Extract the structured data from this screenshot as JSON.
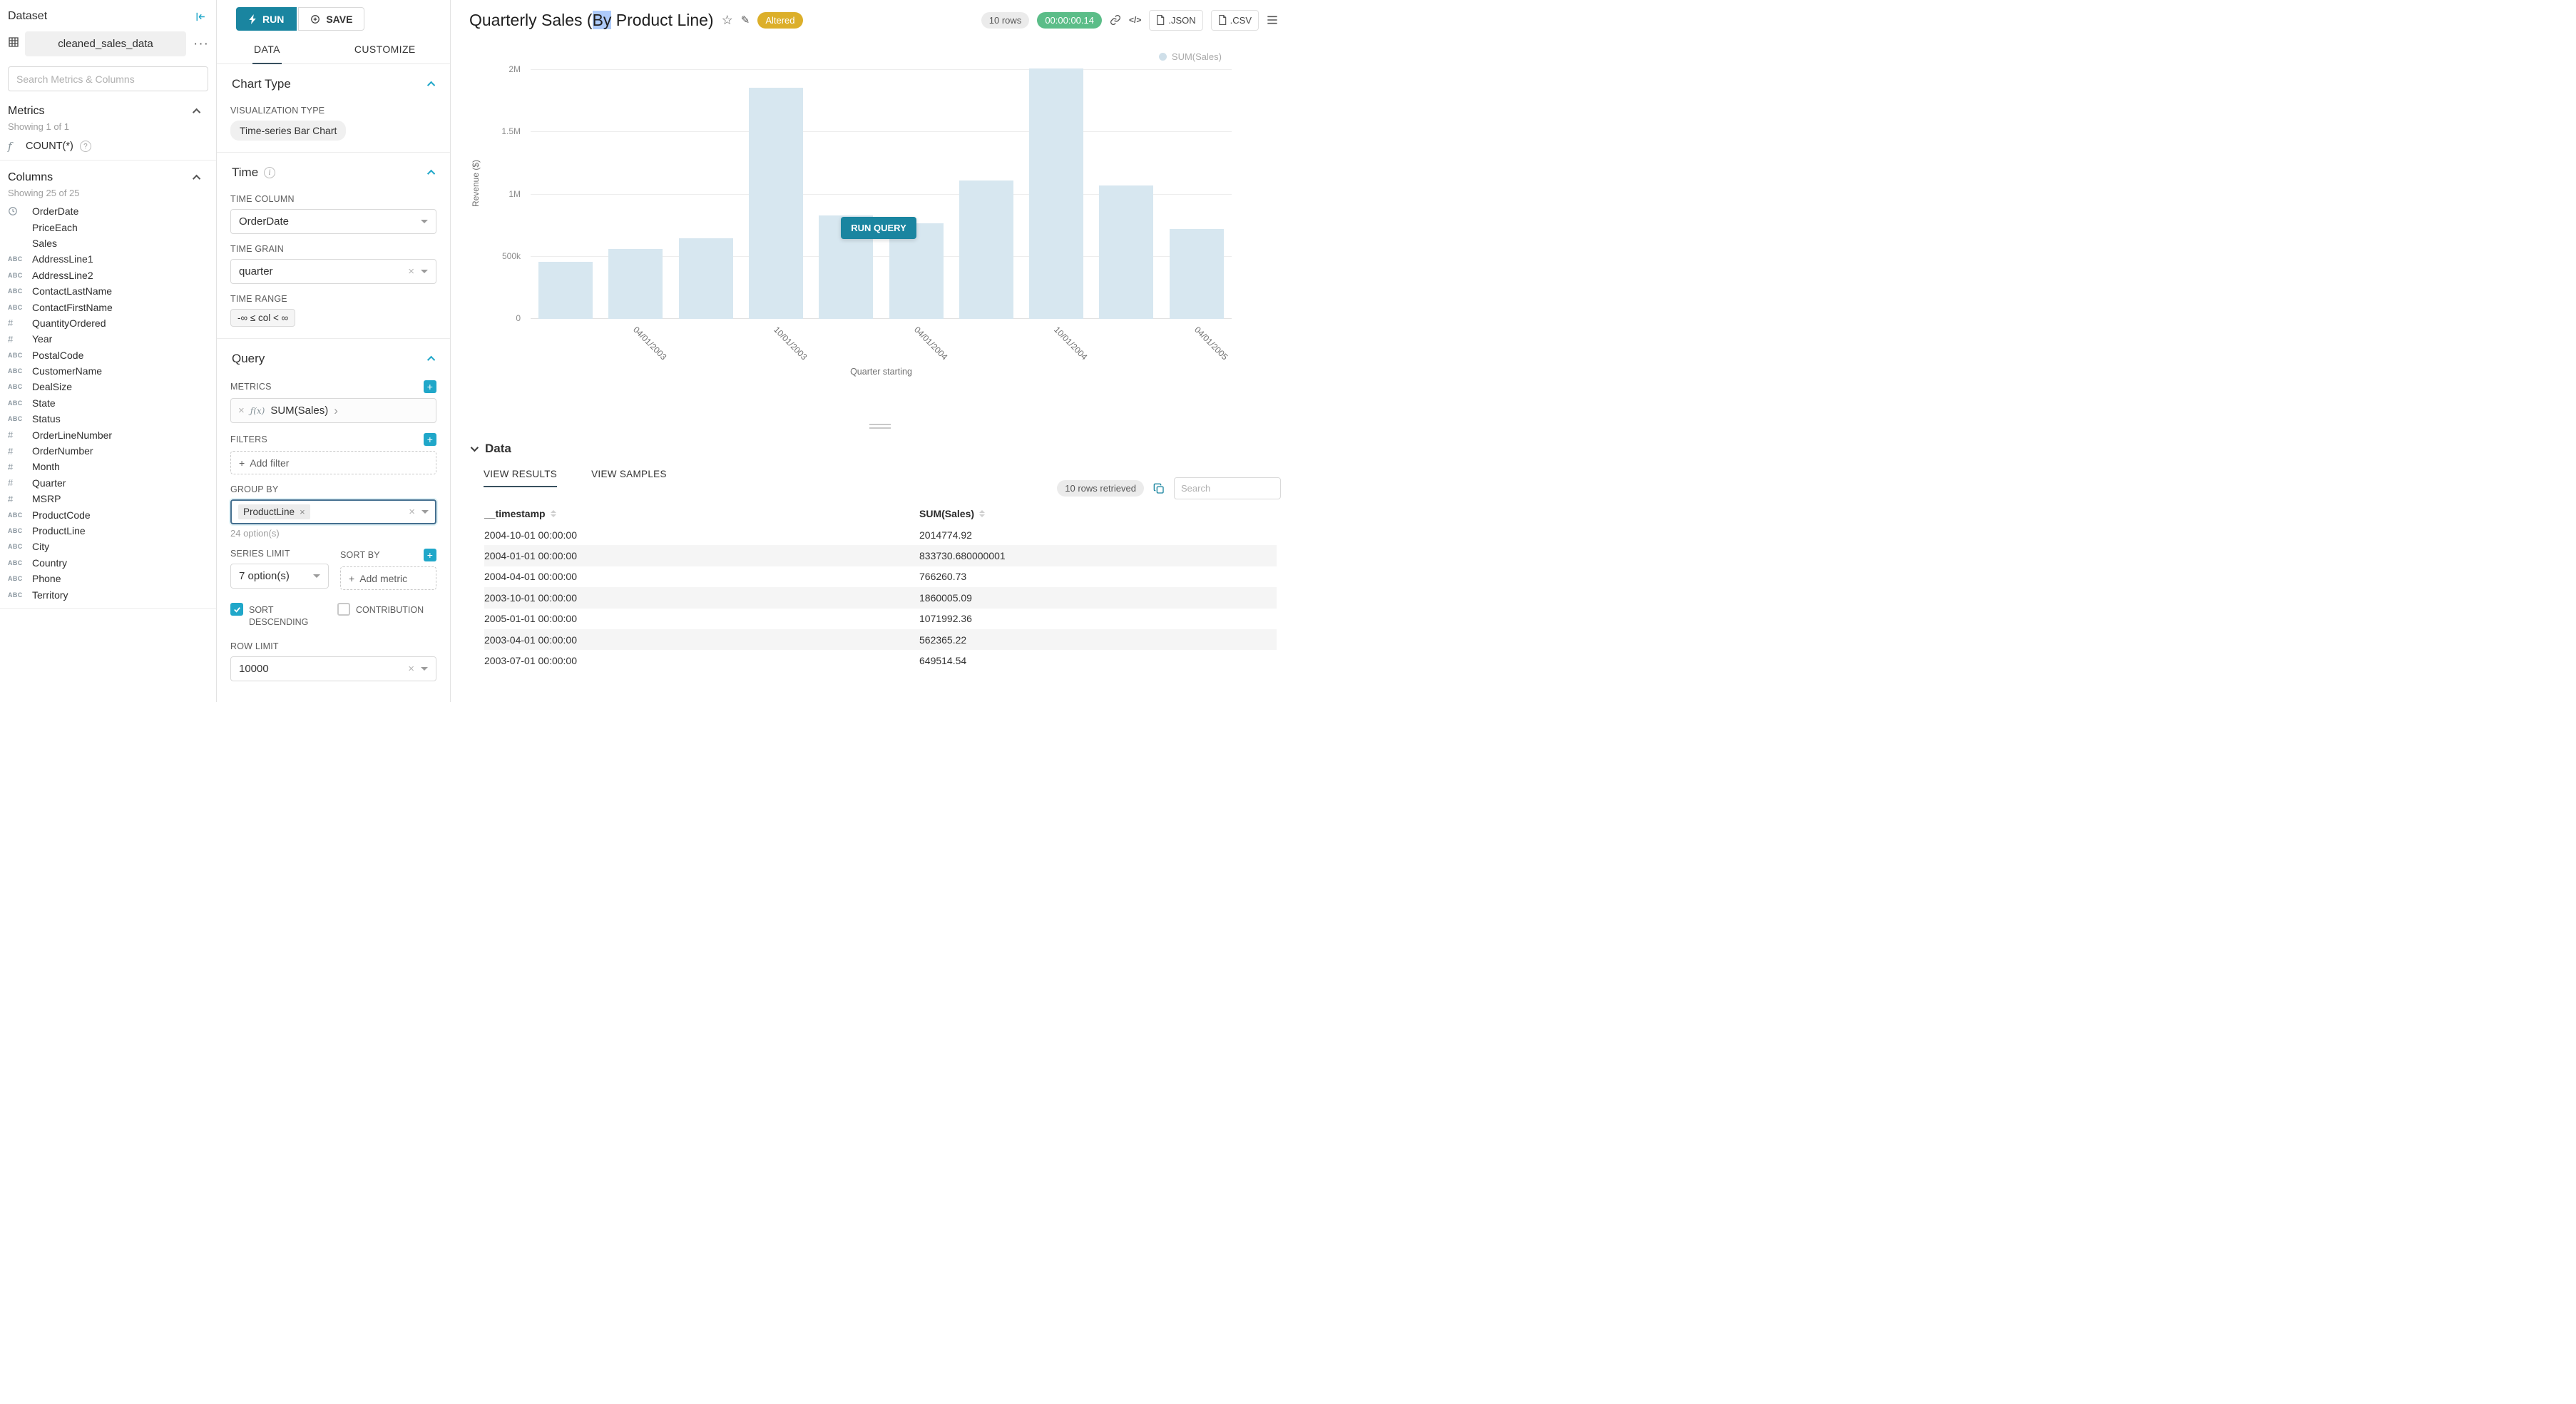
{
  "icons": {
    "more": "···",
    "star": "☆",
    "pencil": "✎",
    "code": "</>",
    "clear": "×",
    "arrow_right": "›",
    "plus": "+",
    "fx": "ƒ(x)",
    "question": "?",
    "info": "i"
  },
  "sidebar": {
    "panel_title": "Dataset",
    "dataset_name": "cleaned_sales_data",
    "search_placeholder": "Search Metrics & Columns",
    "metrics_title": "Metrics",
    "metrics_showing": "Showing 1 of 1",
    "metric_name": "COUNT(*)",
    "columns_title": "Columns",
    "columns_showing": "Showing 25 of 25",
    "columns": [
      {
        "name": "OrderDate",
        "type": "clock"
      },
      {
        "name": "PriceEach",
        "type": "blank"
      },
      {
        "name": "Sales",
        "type": "blank"
      },
      {
        "name": "AddressLine1",
        "type": "abc"
      },
      {
        "name": "AddressLine2",
        "type": "abc"
      },
      {
        "name": "ContactLastName",
        "type": "abc"
      },
      {
        "name": "ContactFirstName",
        "type": "abc"
      },
      {
        "name": "QuantityOrdered",
        "type": "num"
      },
      {
        "name": "Year",
        "type": "num"
      },
      {
        "name": "PostalCode",
        "type": "abc"
      },
      {
        "name": "CustomerName",
        "type": "abc"
      },
      {
        "name": "DealSize",
        "type": "abc"
      },
      {
        "name": "State",
        "type": "abc"
      },
      {
        "name": "Status",
        "type": "abc"
      },
      {
        "name": "OrderLineNumber",
        "type": "num"
      },
      {
        "name": "OrderNumber",
        "type": "num"
      },
      {
        "name": "Month",
        "type": "num"
      },
      {
        "name": "Quarter",
        "type": "num"
      },
      {
        "name": "MSRP",
        "type": "num"
      },
      {
        "name": "ProductCode",
        "type": "abc"
      },
      {
        "name": "ProductLine",
        "type": "abc"
      },
      {
        "name": "City",
        "type": "abc"
      },
      {
        "name": "Country",
        "type": "abc"
      },
      {
        "name": "Phone",
        "type": "abc"
      },
      {
        "name": "Territory",
        "type": "abc"
      }
    ]
  },
  "controls": {
    "run_label": "RUN",
    "save_label": "SAVE",
    "tab_data": "DATA",
    "tab_customize": "CUSTOMIZE",
    "chart_type_section": "Chart Type",
    "viz_type_label": "VISUALIZATION TYPE",
    "viz_type_value": "Time-series Bar Chart",
    "time_section": "Time",
    "time_column_label": "TIME COLUMN",
    "time_column_value": "OrderDate",
    "time_grain_label": "TIME GRAIN",
    "time_grain_value": "quarter",
    "time_range_label": "TIME RANGE",
    "time_range_value": "-∞ ≤ col < ∞",
    "query_section": "Query",
    "metrics_label": "METRICS",
    "metric_value": "SUM(Sales)",
    "filters_label": "FILTERS",
    "add_filter_label": "Add filter",
    "group_by_label": "GROUP BY",
    "group_by_tag": "ProductLine",
    "group_by_hint": "24 option(s)",
    "series_limit_label": "SERIES LIMIT",
    "series_limit_value": "7 option(s)",
    "sort_by_label": "SORT BY",
    "sort_by_placeholder": "Add metric",
    "sort_descending_label": "SORT DESCENDING",
    "contribution_label": "CONTRIBUTION",
    "row_limit_label": "ROW LIMIT",
    "row_limit_value": "10000"
  },
  "header": {
    "title_pre": "Quarterly Sales (",
    "title_selected": "By",
    "title_post": " Product Line)",
    "altered_badge": "Altered",
    "rows_badge": "10 rows",
    "timer": "00:00:00.14",
    "json_label": ".JSON",
    "csv_label": ".CSV"
  },
  "chart": {
    "run_query_label": "RUN QUERY"
  },
  "chart_data": {
    "type": "bar",
    "series_name": "SUM(Sales)",
    "x": [
      "2003-01-01",
      "2003-04-01",
      "2003-07-01",
      "2003-10-01",
      "2004-01-01",
      "2004-04-01",
      "2004-07-01",
      "2004-10-01",
      "2005-01-01",
      "2005-04-01"
    ],
    "values": [
      460000,
      562365.22,
      649514.54,
      1860005.09,
      833730.68,
      766260.73,
      1113000,
      2014774.92,
      1071992.36,
      723000
    ],
    "ylabel": "Revenue ($)",
    "xlabel": "Quarter starting",
    "ylim": [
      0,
      2150000
    ],
    "yticks": [
      {
        "label": "0",
        "value": 0
      },
      {
        "label": "500k",
        "value": 500000
      },
      {
        "label": "1M",
        "value": 1000000
      },
      {
        "label": "1.5M",
        "value": 1500000
      },
      {
        "label": "2M",
        "value": 2000000
      }
    ],
    "xticks": [
      {
        "label": "04/01/2003",
        "slot": 1
      },
      {
        "label": "10/01/2003",
        "slot": 3
      },
      {
        "label": "04/01/2004",
        "slot": 5
      },
      {
        "label": "10/01/2004",
        "slot": 7
      },
      {
        "label": "04/01/2005",
        "slot": 9
      }
    ],
    "legend": [
      "SUM(Sales)"
    ],
    "legend_position": "top-right",
    "grid": true,
    "bar_color": "#d7e7f0"
  },
  "data_panel": {
    "title": "Data",
    "tab_results": "VIEW RESULTS",
    "tab_samples": "VIEW SAMPLES",
    "rows_retrieved": "10 rows retrieved",
    "search_placeholder": "Search",
    "table": {
      "columns": [
        "__timestamp",
        "SUM(Sales)"
      ],
      "rows": [
        [
          "2004-10-01 00:00:00",
          "2014774.92"
        ],
        [
          "2004-01-01 00:00:00",
          "833730.680000001"
        ],
        [
          "2004-04-01 00:00:00",
          "766260.73"
        ],
        [
          "2003-10-01 00:00:00",
          "1860005.09"
        ],
        [
          "2005-01-01 00:00:00",
          "1071992.36"
        ],
        [
          "2003-04-01 00:00:00",
          "562365.22"
        ],
        [
          "2003-07-01 00:00:00",
          "649514.54"
        ]
      ]
    }
  }
}
